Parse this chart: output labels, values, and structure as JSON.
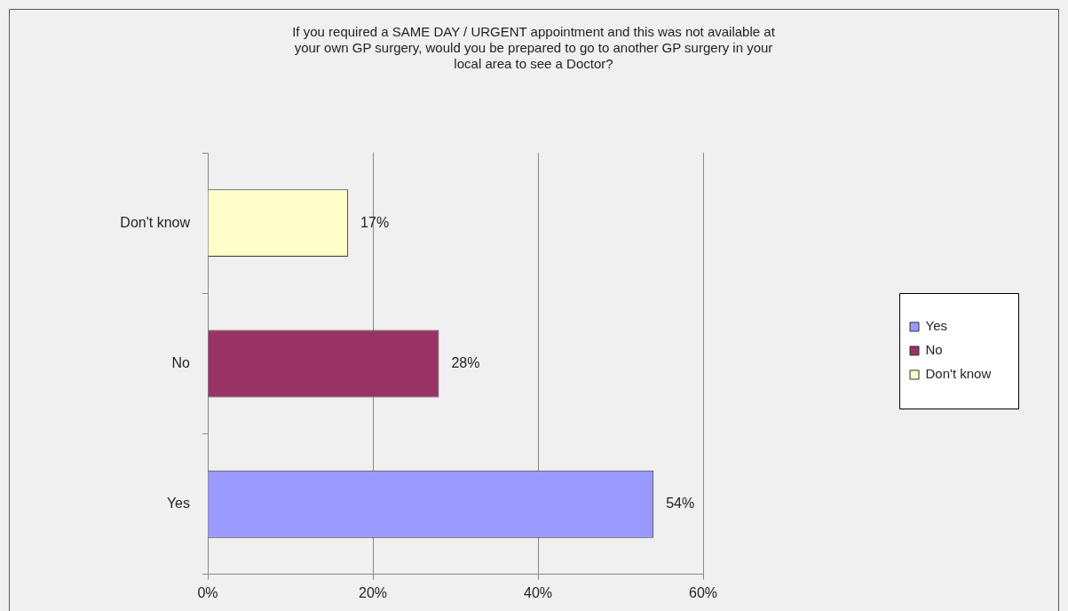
{
  "chart_data": {
    "type": "bar",
    "orientation": "horizontal",
    "stacked": true,
    "title": "If you required a SAME DAY / URGENT appointment and this was not available at your own GP surgery, would you be prepared to go to another GP surgery in your local area to see a Doctor?",
    "categories": [
      "Don't know",
      "No",
      "Yes"
    ],
    "series": [
      {
        "name": "Yes",
        "color": "#9999ff",
        "values": [
          null,
          null,
          54
        ],
        "value_labels": [
          null,
          null,
          "54%"
        ]
      },
      {
        "name": "No",
        "color": "#993366",
        "values": [
          null,
          28,
          null
        ],
        "value_labels": [
          null,
          "28%",
          null
        ]
      },
      {
        "name": "Don't know",
        "color": "#ffffcc",
        "values": [
          17,
          null,
          null
        ],
        "value_labels": [
          "17%",
          null,
          null
        ]
      }
    ],
    "xlim": [
      0,
      60
    ],
    "xticks": [
      {
        "value": 0,
        "label": "0%"
      },
      {
        "value": 20,
        "label": "20%"
      },
      {
        "value": 40,
        "label": "40%"
      },
      {
        "value": 60,
        "label": "60%"
      }
    ],
    "grid": "x",
    "legend": "right"
  }
}
